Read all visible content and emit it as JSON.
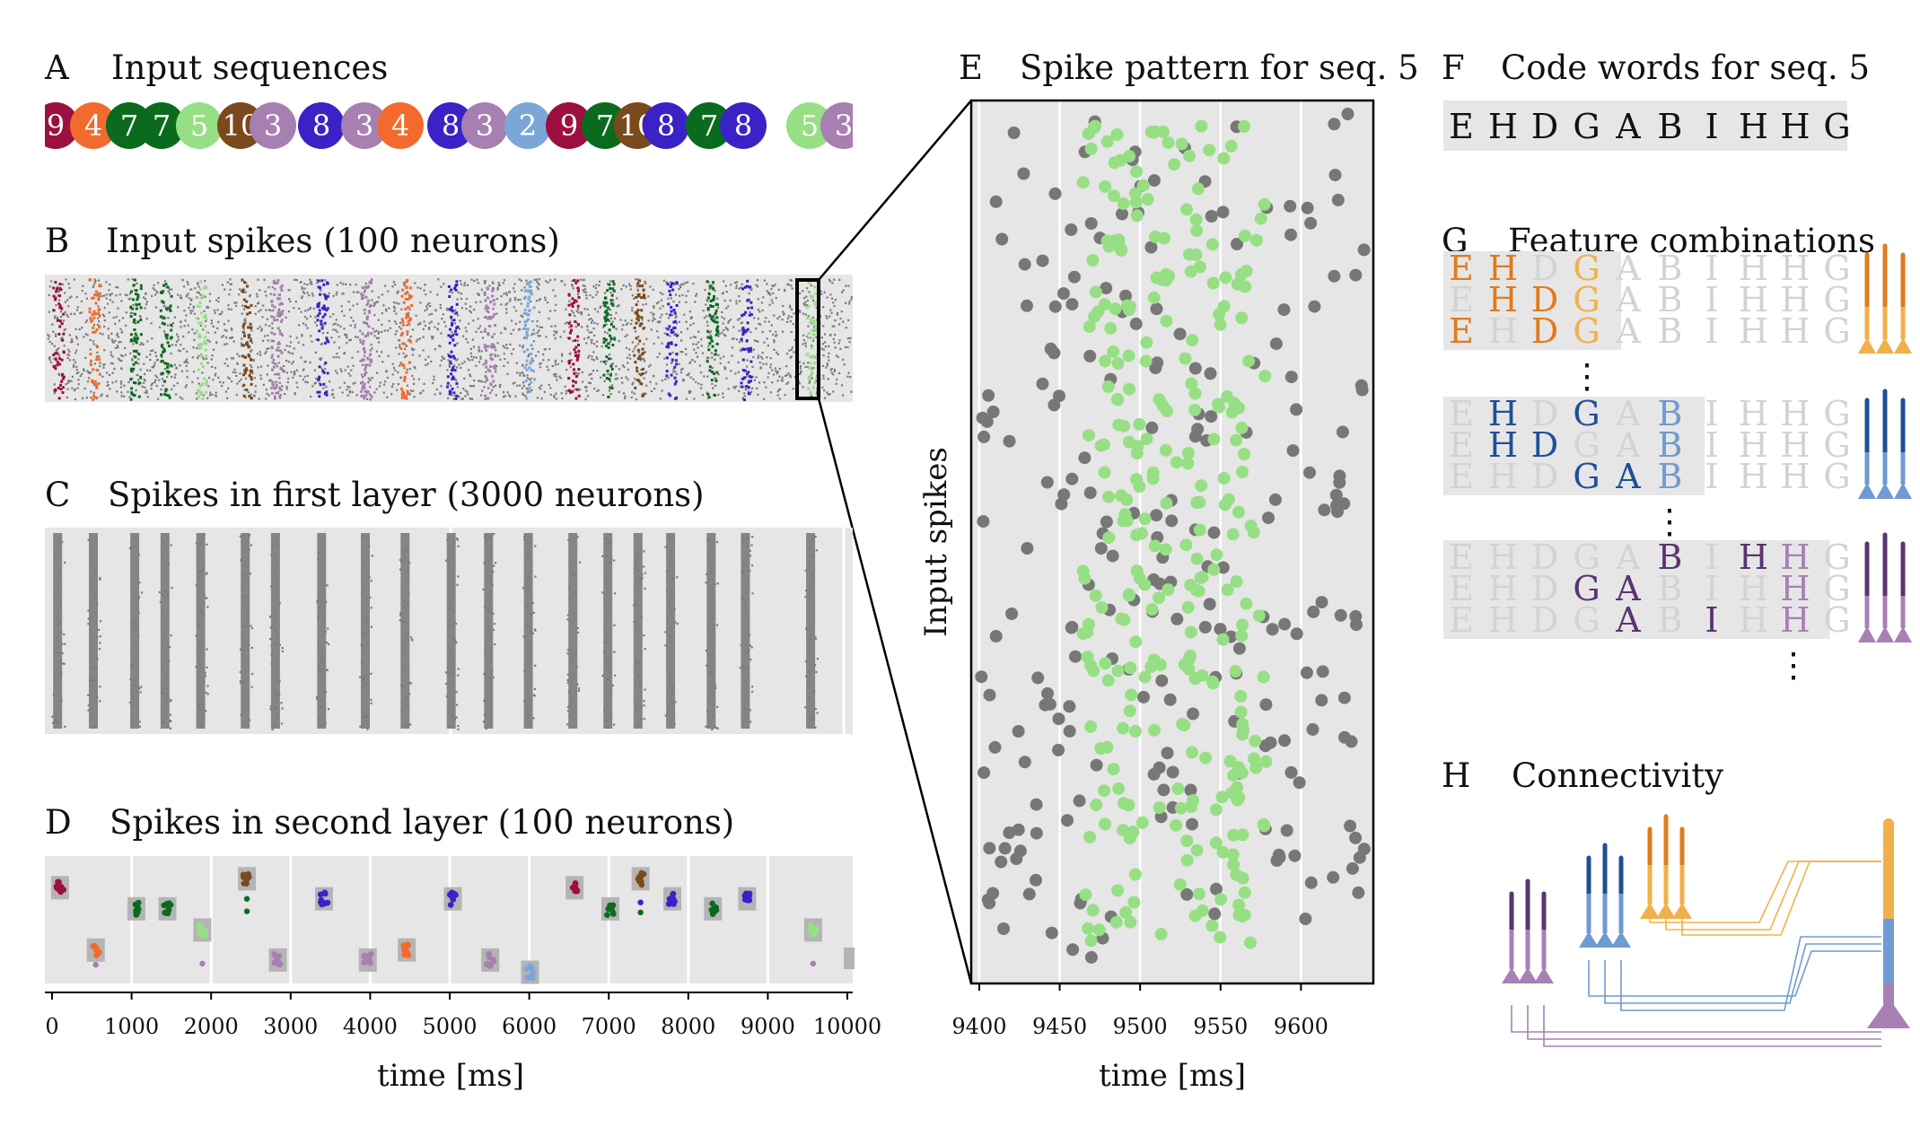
{
  "palette": {
    "2": "#7ba7d8",
    "3": "#a77fb1",
    "4": "#f26a2d",
    "5": "#97df85",
    "7": "#0a6b1f",
    "8": "#3a22c6",
    "9": "#9d0f40",
    "10": "#7a4a1c",
    "bg": "#e6e6e6",
    "gray_spike": "#777777",
    "orange": "#e07b1c",
    "orange_light": "#f2b04a",
    "blue": "#1f4f99",
    "blue_light": "#6f9ad2",
    "purple": "#5a3470",
    "purple_light": "#a880b5",
    "faded": "#d3d3d3"
  },
  "panels": {
    "A": {
      "letter": "A",
      "title": "Input sequences",
      "labels": [
        "9",
        "4",
        "7",
        "7",
        "5",
        "10",
        "3",
        "8",
        "3",
        "4",
        "8",
        "3",
        "2",
        "9",
        "7",
        "10",
        "8",
        "7",
        "8",
        "5",
        "3"
      ]
    },
    "B": {
      "letter": "B",
      "title": "Input spikes (100 neurons)"
    },
    "C": {
      "letter": "C",
      "title": "Spikes in first layer (3000 neurons)"
    },
    "D": {
      "letter": "D",
      "title": "Spikes in second layer (100 neurons)"
    },
    "E": {
      "letter": "E",
      "title": "Spike pattern for seq. 5"
    },
    "F": {
      "letter": "F",
      "title": "Code words for seq. 5",
      "letters": [
        "E",
        "H",
        "D",
        "G",
        "A",
        "B",
        "I",
        "H",
        "H",
        "G"
      ]
    },
    "G": {
      "letter": "G",
      "title": "Feature combinations",
      "ellipsis": "⋮"
    },
    "H": {
      "letter": "H",
      "title": "Connectivity"
    }
  },
  "chart_data": [
    {
      "type": "scatter",
      "panel": "A",
      "title": "Input sequences",
      "sequence": [
        9,
        4,
        7,
        7,
        5,
        10,
        3,
        8,
        3,
        4,
        8,
        3,
        2,
        9,
        7,
        10,
        8,
        7,
        8,
        5,
        3
      ]
    },
    {
      "type": "scatter",
      "panel": "D",
      "title": "Spikes in second layer (100 neurons)",
      "xlabel": "time [ms]",
      "xlim": [
        -80,
        10080
      ],
      "xticks": [
        0,
        1000,
        2000,
        3000,
        4000,
        5000,
        6000,
        7000,
        8000,
        9000,
        10000
      ],
      "onsets": [
        80,
        530,
        1050,
        1430,
        1880,
        2440,
        2820,
        3400,
        3950,
        4450,
        5030,
        5500,
        6000,
        6560,
        7000,
        7380,
        7790,
        8300,
        8730,
        9550,
        10000
      ],
      "clusters": [
        {
          "x": 100,
          "digit": "9",
          "level": 0.22
        },
        {
          "x": 550,
          "digit": "4",
          "level": 0.78
        },
        {
          "x": 1060,
          "digit": "7",
          "level": 0.41
        },
        {
          "x": 1450,
          "digit": "7",
          "level": 0.41
        },
        {
          "x": 1890,
          "digit": "5",
          "level": 0.6
        },
        {
          "x": 2450,
          "digit": "10",
          "level": 0.14
        },
        {
          "x": 2840,
          "digit": "3",
          "level": 0.87
        },
        {
          "x": 3420,
          "digit": "8",
          "level": 0.32
        },
        {
          "x": 3970,
          "digit": "3",
          "level": 0.87
        },
        {
          "x": 4460,
          "digit": "4",
          "level": 0.78
        },
        {
          "x": 5040,
          "digit": "8",
          "level": 0.32
        },
        {
          "x": 5510,
          "digit": "3",
          "level": 0.87
        },
        {
          "x": 6010,
          "digit": "2",
          "level": 0.98
        },
        {
          "x": 6570,
          "digit": "9",
          "level": 0.22
        },
        {
          "x": 7020,
          "digit": "7",
          "level": 0.41
        },
        {
          "x": 7400,
          "digit": "10",
          "level": 0.14
        },
        {
          "x": 7800,
          "digit": "8",
          "level": 0.32
        },
        {
          "x": 8310,
          "digit": "7",
          "level": 0.41
        },
        {
          "x": 8740,
          "digit": "8",
          "level": 0.32
        },
        {
          "x": 9570,
          "digit": "5",
          "level": 0.6
        }
      ]
    },
    {
      "type": "scatter",
      "panel": "E",
      "title": "Spike pattern for seq. 5",
      "xlabel": "time [ms]",
      "ylabel": "Input spikes",
      "xlim": [
        9395,
        9645
      ],
      "xticks": [
        9400,
        9450,
        9500,
        9550,
        9600
      ],
      "series": [
        {
          "color": "gray",
          "points": 230
        },
        {
          "color": "#97df85",
          "points": 300
        }
      ]
    }
  ]
}
